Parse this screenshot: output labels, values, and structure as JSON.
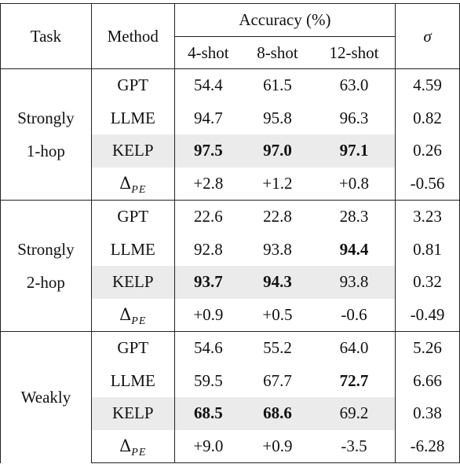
{
  "header": {
    "task": "Task",
    "method": "Method",
    "accuracy": "Accuracy (%)",
    "shots": [
      "4-shot",
      "8-shot",
      "12-shot"
    ],
    "sigma": "σ"
  },
  "groups": [
    {
      "task_line1": "Strongly",
      "task_line2": "1-hop",
      "rows": [
        {
          "method": "GPT",
          "v4": "54.4",
          "v8": "61.5",
          "v12": "63.0",
          "sigma": "4.59"
        },
        {
          "method": "LLME",
          "v4": "94.7",
          "v8": "95.8",
          "v12": "96.3",
          "sigma": "0.82"
        },
        {
          "method": "KELP",
          "v4": "97.5",
          "v8": "97.0",
          "v12": "97.1",
          "sigma": "0.26"
        },
        {
          "method_symbol": "Δ",
          "method_sub": "PE",
          "v4": "+2.8",
          "v8": "+1.2",
          "v12": "+0.8",
          "sigma": "-0.56"
        }
      ]
    },
    {
      "task_line1": "Strongly",
      "task_line2": "2-hop",
      "rows": [
        {
          "method": "GPT",
          "v4": "22.6",
          "v8": "22.8",
          "v12": "28.3",
          "sigma": "3.23"
        },
        {
          "method": "LLME",
          "v4": "92.8",
          "v8": "93.8",
          "v12": "94.4",
          "sigma": "0.81"
        },
        {
          "method": "KELP",
          "v4": "93.7",
          "v8": "94.3",
          "v12": "93.8",
          "sigma": "0.32"
        },
        {
          "method_symbol": "Δ",
          "method_sub": "PE",
          "v4": "+0.9",
          "v8": "+0.5",
          "v12": "-0.6",
          "sigma": "-0.49"
        }
      ]
    },
    {
      "task_line1": "Weakly",
      "rows": [
        {
          "method": "GPT",
          "v4": "54.6",
          "v8": "55.2",
          "v12": "64.0",
          "sigma": "5.26"
        },
        {
          "method": "LLME",
          "v4": "59.5",
          "v8": "67.7",
          "v12": "72.7",
          "sigma": "6.66"
        },
        {
          "method": "KELP",
          "v4": "68.5",
          "v8": "68.6",
          "v12": "69.2",
          "sigma": "0.38"
        },
        {
          "method_symbol": "Δ",
          "method_sub": "PE",
          "v4": "+9.0",
          "v8": "+0.9",
          "v12": "-3.5",
          "sigma": "-6.28"
        }
      ]
    }
  ]
}
